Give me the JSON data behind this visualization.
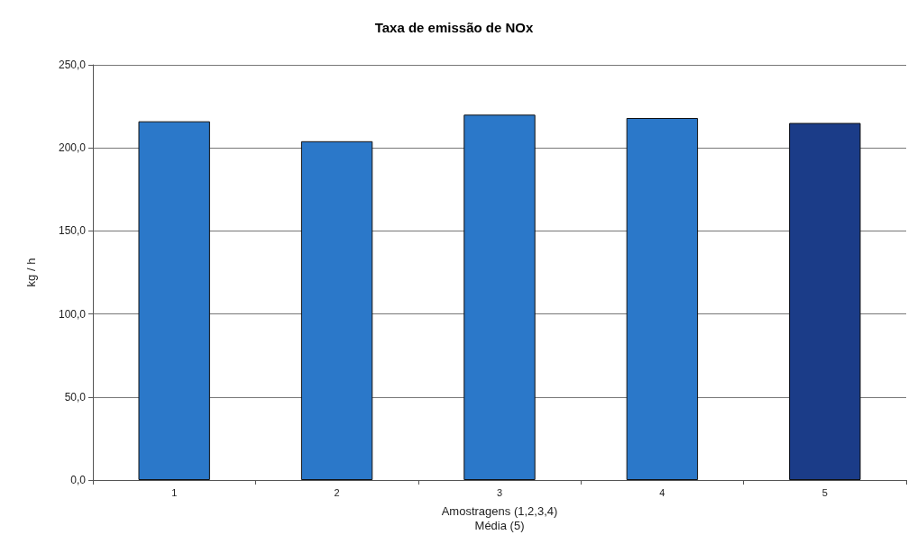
{
  "chart_data": {
    "type": "bar",
    "title": "Taxa de emissão de NOx",
    "xlabel": "Amostragens (1,2,3,4)\nMédia (5)",
    "ylabel": "kg / h",
    "categories": [
      "1",
      "2",
      "3",
      "4",
      "5"
    ],
    "values": [
      216,
      204,
      220,
      218,
      215
    ],
    "colors": [
      "#2b78c9",
      "#2b78c9",
      "#2b78c9",
      "#2b78c9",
      "#1b3c88"
    ],
    "ylim": [
      0,
      250
    ],
    "yticks": [
      {
        "value": 0,
        "label": "0,0"
      },
      {
        "value": 50,
        "label": "50,0"
      },
      {
        "value": 100,
        "label": "100,0"
      },
      {
        "value": 150,
        "label": "150,0"
      },
      {
        "value": 200,
        "label": "200,0"
      },
      {
        "value": 250,
        "label": "250,0"
      }
    ],
    "grid": "y"
  }
}
